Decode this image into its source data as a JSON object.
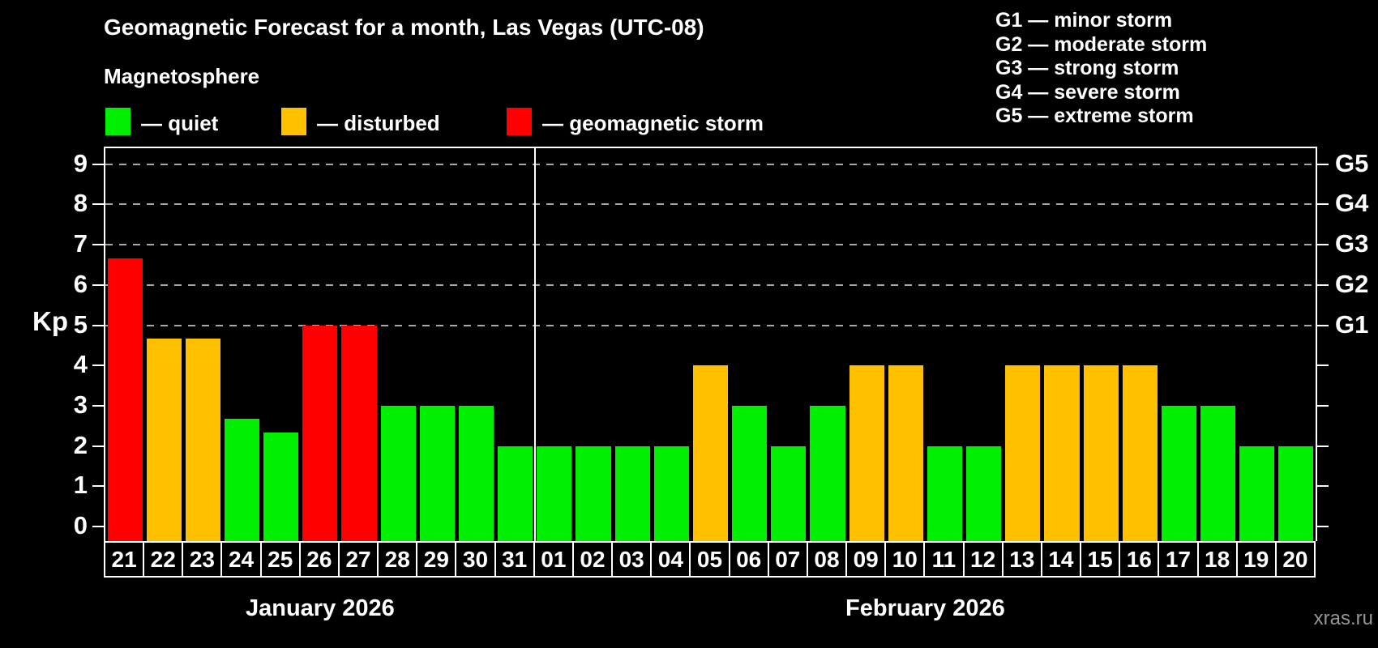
{
  "title": "Geomagnetic Forecast for a month, Las Vegas (UTC-08)",
  "subtitle": "Magnetosphere",
  "watermark": "xras.ru",
  "colors": {
    "quiet": "#00ee00",
    "disturbed": "#ffc000",
    "storm": "#ff0000",
    "background": "#000000",
    "axis": "#ffffff",
    "gridline": "#a8a8a8",
    "watermark_gray": "#979797"
  },
  "legend": [
    {
      "state": "quiet",
      "label": "— quiet"
    },
    {
      "state": "disturbed",
      "label": "— disturbed"
    },
    {
      "state": "storm",
      "label": "— geomagnetic storm"
    }
  ],
  "storm_scale_legend": [
    "G1 — minor storm",
    "G2 — moderate storm",
    "G3 — strong storm",
    "G4 — severe storm",
    "G5 — extreme storm"
  ],
  "chart_data": {
    "type": "bar",
    "ylabel": "Kp",
    "ylim": [
      0,
      9
    ],
    "grid": "dashed horizontal at Kp 5-9",
    "y_ticks": [
      0,
      1,
      2,
      3,
      4,
      5,
      6,
      7,
      8,
      9
    ],
    "gridlines_kp": [
      5,
      6,
      7,
      8,
      9
    ],
    "right_axis_labels": [
      {
        "label": "G1",
        "kp": 5
      },
      {
        "label": "G2",
        "kp": 6
      },
      {
        "label": "G3",
        "kp": 7
      },
      {
        "label": "G4",
        "kp": 8
      },
      {
        "label": "G5",
        "kp": 9
      }
    ],
    "months": [
      {
        "label": "January 2026",
        "days": 11
      },
      {
        "label": "February 2026",
        "days": 20
      }
    ],
    "bars": [
      {
        "day": "21",
        "kp": 6.67,
        "state": "storm"
      },
      {
        "day": "22",
        "kp": 4.67,
        "state": "disturbed"
      },
      {
        "day": "23",
        "kp": 4.67,
        "state": "disturbed"
      },
      {
        "day": "24",
        "kp": 2.67,
        "state": "quiet"
      },
      {
        "day": "25",
        "kp": 2.33,
        "state": "quiet"
      },
      {
        "day": "26",
        "kp": 5.0,
        "state": "storm"
      },
      {
        "day": "27",
        "kp": 5.0,
        "state": "storm"
      },
      {
        "day": "28",
        "kp": 3.0,
        "state": "quiet"
      },
      {
        "day": "29",
        "kp": 3.0,
        "state": "quiet"
      },
      {
        "day": "30",
        "kp": 3.0,
        "state": "quiet"
      },
      {
        "day": "31",
        "kp": 2.0,
        "state": "quiet"
      },
      {
        "day": "01",
        "kp": 2.0,
        "state": "quiet"
      },
      {
        "day": "02",
        "kp": 2.0,
        "state": "quiet"
      },
      {
        "day": "03",
        "kp": 2.0,
        "state": "quiet"
      },
      {
        "day": "04",
        "kp": 2.0,
        "state": "quiet"
      },
      {
        "day": "05",
        "kp": 4.0,
        "state": "disturbed"
      },
      {
        "day": "06",
        "kp": 3.0,
        "state": "quiet"
      },
      {
        "day": "07",
        "kp": 2.0,
        "state": "quiet"
      },
      {
        "day": "08",
        "kp": 3.0,
        "state": "quiet"
      },
      {
        "day": "09",
        "kp": 4.0,
        "state": "disturbed"
      },
      {
        "day": "10",
        "kp": 4.0,
        "state": "disturbed"
      },
      {
        "day": "11",
        "kp": 2.0,
        "state": "quiet"
      },
      {
        "day": "12",
        "kp": 2.0,
        "state": "quiet"
      },
      {
        "day": "13",
        "kp": 4.0,
        "state": "disturbed"
      },
      {
        "day": "14",
        "kp": 4.0,
        "state": "disturbed"
      },
      {
        "day": "15",
        "kp": 4.0,
        "state": "disturbed"
      },
      {
        "day": "16",
        "kp": 4.0,
        "state": "disturbed"
      },
      {
        "day": "17",
        "kp": 3.0,
        "state": "quiet"
      },
      {
        "day": "18",
        "kp": 3.0,
        "state": "quiet"
      },
      {
        "day": "19",
        "kp": 2.0,
        "state": "quiet"
      },
      {
        "day": "20",
        "kp": 2.0,
        "state": "quiet"
      }
    ]
  }
}
